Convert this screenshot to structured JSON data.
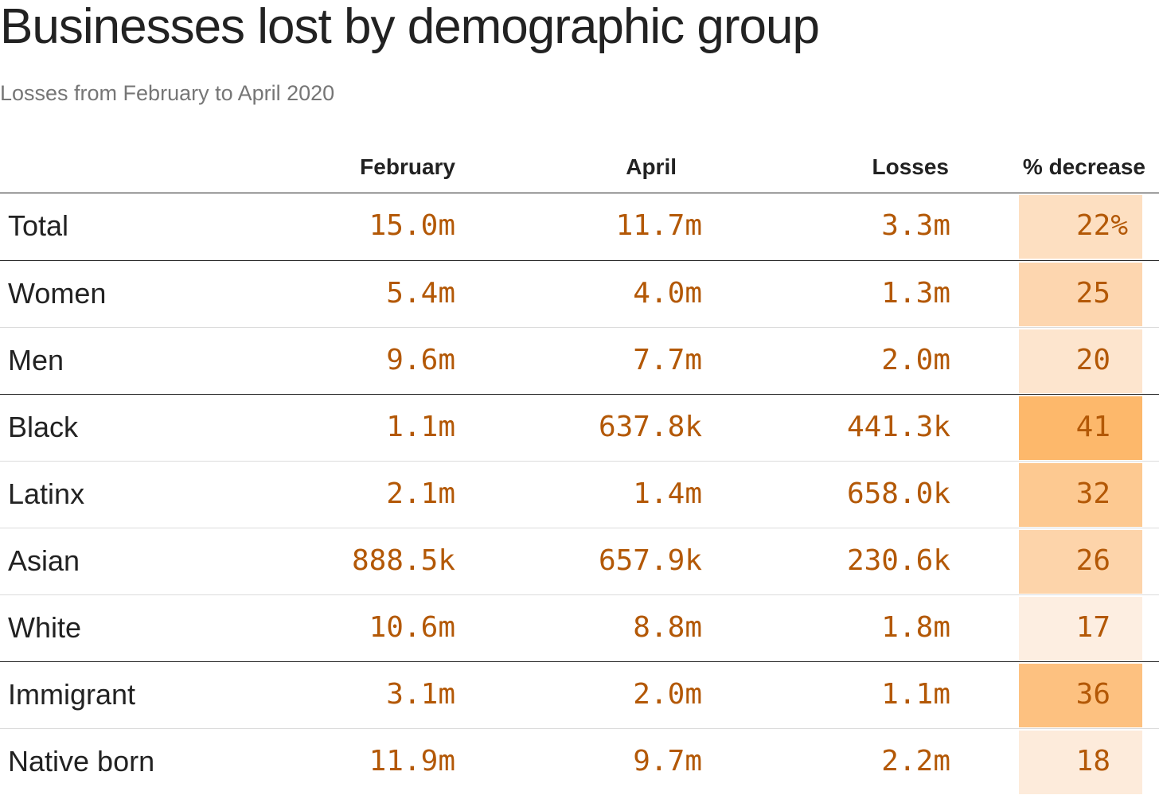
{
  "chart_data": {
    "type": "table",
    "title": "Businesses lost by demographic group",
    "subtitle": "Losses from February to April 2020",
    "columns": [
      "",
      "February",
      "April",
      "Losses",
      "% decrease"
    ],
    "rows": [
      {
        "label": "Total",
        "february": "15.0m",
        "april": "11.7m",
        "losses": "3.3m",
        "pct": "22%",
        "pct_value": 22,
        "group_break": false
      },
      {
        "label": "Women",
        "february": "5.4m",
        "april": "4.0m",
        "losses": "1.3m",
        "pct": "25",
        "pct_value": 25,
        "group_break": true
      },
      {
        "label": "Men",
        "february": "9.6m",
        "april": "7.7m",
        "losses": "2.0m",
        "pct": "20",
        "pct_value": 20,
        "group_break": false
      },
      {
        "label": "Black",
        "february": "1.1m",
        "april": "637.8k",
        "losses": "441.3k",
        "pct": "41",
        "pct_value": 41,
        "group_break": true
      },
      {
        "label": "Latinx",
        "february": "2.1m",
        "april": "1.4m",
        "losses": "658.0k",
        "pct": "32",
        "pct_value": 32,
        "group_break": false
      },
      {
        "label": "Asian",
        "february": "888.5k",
        "april": "657.9k",
        "losses": "230.6k",
        "pct": "26",
        "pct_value": 26,
        "group_break": false
      },
      {
        "label": "White",
        "february": "10.6m",
        "april": "8.8m",
        "losses": "1.8m",
        "pct": "17",
        "pct_value": 17,
        "group_break": false
      },
      {
        "label": "Immigrant",
        "february": "3.1m",
        "april": "2.0m",
        "losses": "1.1m",
        "pct": "36",
        "pct_value": 36,
        "group_break": true
      },
      {
        "label": "Native born",
        "february": "11.9m",
        "april": "9.7m",
        "losses": "2.2m",
        "pct": "18",
        "pct_value": 18,
        "group_break": false
      }
    ],
    "colors": {
      "value_text": "#b35806",
      "heat_low": "#fdeee1",
      "heat_mid": "#fdd5ac",
      "heat_high": "#fdb86b"
    }
  }
}
